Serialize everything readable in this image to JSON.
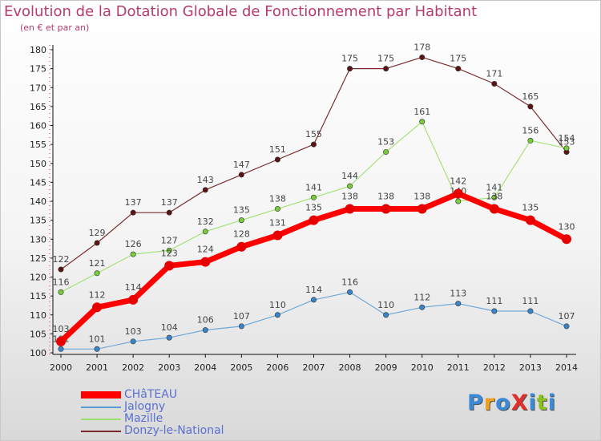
{
  "title": "Evolution de la Dotation Globale de Fonctionnement par Habitant",
  "subtitle": "(en € et par an)",
  "logo": {
    "text": "ProXiti",
    "letters": [
      {
        "ch": "P",
        "color": "#3a8ad8"
      },
      {
        "ch": "r",
        "color": "#f0a020"
      },
      {
        "ch": "o",
        "color": "#3a8ad8"
      },
      {
        "ch": "X",
        "color": "#e0302a"
      },
      {
        "ch": "i",
        "color": "#3a8ad8"
      },
      {
        "ch": "t",
        "color": "#8cc020"
      },
      {
        "ch": "i",
        "color": "#3a8ad8"
      }
    ]
  },
  "chart_data": {
    "type": "line",
    "title": "Evolution de la Dotation Globale de Fonctionnement par Habitant",
    "subtitle": "(en € et par an)",
    "x": [
      2000,
      2001,
      2002,
      2003,
      2004,
      2005,
      2006,
      2007,
      2008,
      2009,
      2010,
      2011,
      2012,
      2013,
      2014
    ],
    "ylim": [
      100,
      180
    ],
    "yticks": [
      100,
      105,
      110,
      115,
      120,
      125,
      130,
      135,
      140,
      145,
      150,
      155,
      160,
      165,
      170,
      175,
      180
    ],
    "grid": false,
    "legend_position": "bottom-left",
    "series": [
      {
        "name": "CHâTEAU",
        "color": "#ff0000",
        "line_color": "#ff0000",
        "dot_color": "#e60000",
        "width": 7,
        "radius": 6,
        "values": [
          103,
          112,
          114,
          123,
          124,
          128,
          131,
          135,
          138,
          138,
          138,
          142,
          138,
          135,
          130
        ]
      },
      {
        "name": "Jalogny",
        "color": "#5b9bd5",
        "line_color": "#6fa8d8",
        "dot_color": "#3a84c8",
        "width": 1.2,
        "radius": 3.2,
        "values": [
          101,
          101,
          103,
          104,
          106,
          107,
          110,
          114,
          116,
          110,
          112,
          113,
          111,
          111,
          107
        ]
      },
      {
        "name": "Mazille",
        "color": "#99e06b",
        "line_color": "#a5e27a",
        "dot_color": "#78cc3a",
        "width": 1.2,
        "radius": 3.2,
        "values": [
          116,
          121,
          126,
          127,
          132,
          135,
          138,
          141,
          144,
          153,
          161,
          140,
          141,
          156,
          154
        ]
      },
      {
        "name": "Donzy-le-National",
        "color": "#7a2a2a",
        "line_color": "#7a2e2e",
        "dot_color": "#5a1414",
        "width": 1.2,
        "radius": 3.2,
        "values": [
          122,
          129,
          137,
          137,
          143,
          147,
          151,
          155,
          175,
          175,
          178,
          175,
          171,
          165,
          153
        ]
      }
    ]
  }
}
